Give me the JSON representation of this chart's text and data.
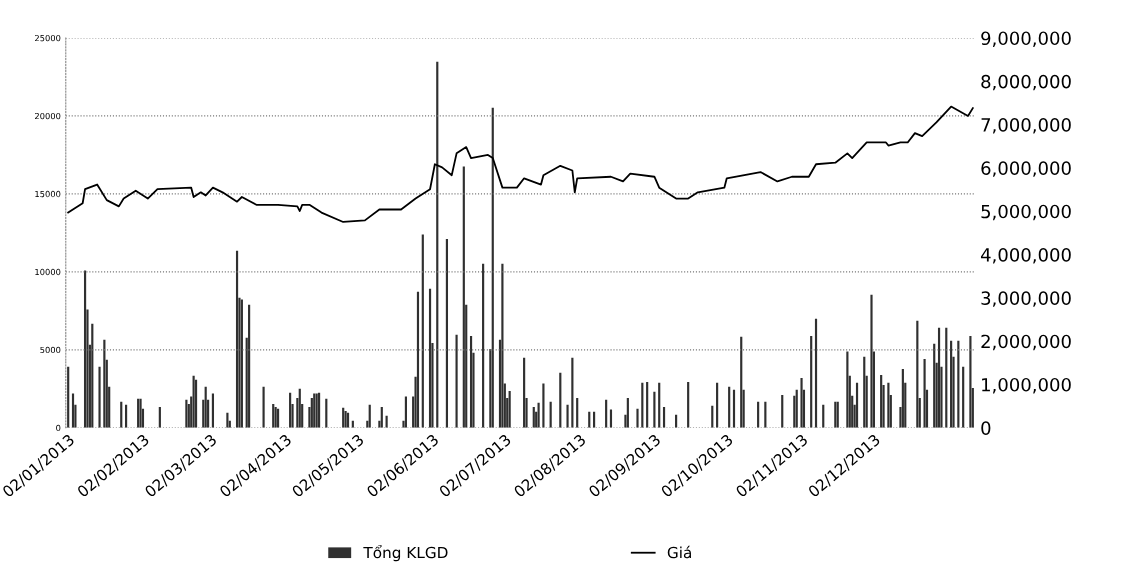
{
  "chart_data": {
    "type": "bar",
    "legend": "bottom",
    "grid": "y",
    "xlim": [
      "2013-01-01",
      "2014-01-13"
    ],
    "xticks": [
      {
        "value": "2013-01-02",
        "label": "02/01/2013"
      },
      {
        "value": "2013-02-02",
        "label": "02/02/2013"
      },
      {
        "value": "2013-03-02",
        "label": "02/03/2013"
      },
      {
        "value": "2013-04-02",
        "label": "02/04/2013"
      },
      {
        "value": "2013-05-02",
        "label": "02/05/2013"
      },
      {
        "value": "2013-06-02",
        "label": "02/06/2013"
      },
      {
        "value": "2013-07-02",
        "label": "02/07/2013"
      },
      {
        "value": "2013-08-02",
        "label": "02/08/2013"
      },
      {
        "value": "2013-09-02",
        "label": "02/09/2013"
      },
      {
        "value": "2013-10-02",
        "label": "02/10/2013"
      },
      {
        "value": "2013-11-02",
        "label": "02/11/2013"
      },
      {
        "value": "2013-12-02",
        "label": "02/12/2013"
      }
    ],
    "ylim": [
      0,
      25000
    ],
    "yticks": [
      0,
      5000,
      10000,
      15000,
      20000,
      25000
    ],
    "y2lim": [
      0,
      9000000
    ],
    "y2ticks": [
      {
        "value": 0,
        "label": "0"
      },
      {
        "value": 1000000,
        "label": "1,000,000"
      },
      {
        "value": 2000000,
        "label": "2,000,000"
      },
      {
        "value": 3000000,
        "label": "3,000,000"
      },
      {
        "value": 4000000,
        "label": "4,000,000"
      },
      {
        "value": 5000000,
        "label": "5,000,000"
      },
      {
        "value": 6000000,
        "label": "6,000,000"
      },
      {
        "value": 7000000,
        "label": "7,000,000"
      },
      {
        "value": 8000000,
        "label": "8,000,000"
      },
      {
        "value": 9000000,
        "label": "9,000,000"
      }
    ],
    "series": [
      {
        "name": "Tổng KLGD",
        "axis": "y2",
        "color": "#303030",
        "x": [
          "2013-01-02",
          "2013-01-04",
          "2013-01-05",
          "2013-01-09",
          "2013-01-10",
          "2013-01-11",
          "2013-01-12",
          "2013-01-15",
          "2013-01-17",
          "2013-01-18",
          "2013-01-19",
          "2013-01-24",
          "2013-01-26",
          "2013-01-31",
          "2013-02-01",
          "2013-02-02",
          "2013-02-09",
          "2013-02-20",
          "2013-02-21",
          "2013-02-22",
          "2013-02-23",
          "2013-02-24",
          "2013-02-27",
          "2013-02-28",
          "2013-03-01",
          "2013-03-03",
          "2013-03-09",
          "2013-03-10",
          "2013-03-13",
          "2013-03-14",
          "2013-03-15",
          "2013-03-17",
          "2013-03-18",
          "2013-03-24",
          "2013-03-28",
          "2013-03-29",
          "2013-03-30",
          "2013-04-04",
          "2013-04-05",
          "2013-04-07",
          "2013-04-08",
          "2013-04-09",
          "2013-04-12",
          "2013-04-13",
          "2013-04-14",
          "2013-04-15",
          "2013-04-16",
          "2013-04-19",
          "2013-04-26",
          "2013-04-27",
          "2013-04-28",
          "2013-04-30",
          "2013-05-06",
          "2013-05-07",
          "2013-05-11",
          "2013-05-12",
          "2013-05-14",
          "2013-05-21",
          "2013-05-22",
          "2013-05-25",
          "2013-05-26",
          "2013-05-27",
          "2013-05-29",
          "2013-06-01",
          "2013-06-02",
          "2013-06-04",
          "2013-06-08",
          "2013-06-12",
          "2013-06-15",
          "2013-06-16",
          "2013-06-18",
          "2013-06-19",
          "2013-06-23",
          "2013-06-26",
          "2013-06-27",
          "2013-06-30",
          "2013-07-01",
          "2013-07-02",
          "2013-07-03",
          "2013-07-04",
          "2013-07-10",
          "2013-07-11",
          "2013-07-14",
          "2013-07-15",
          "2013-07-16",
          "2013-07-18",
          "2013-07-21",
          "2013-07-25",
          "2013-07-28",
          "2013-07-30",
          "2013-08-01",
          "2013-08-06",
          "2013-08-08",
          "2013-08-13",
          "2013-08-15",
          "2013-08-21",
          "2013-08-22",
          "2013-08-26",
          "2013-08-28",
          "2013-08-30",
          "2013-09-02",
          "2013-09-04",
          "2013-09-06",
          "2013-09-11",
          "2013-09-16",
          "2013-09-26",
          "2013-09-28",
          "2013-10-03",
          "2013-10-05",
          "2013-10-08",
          "2013-10-09",
          "2013-10-15",
          "2013-10-18",
          "2013-10-25",
          "2013-10-30",
          "2013-10-31",
          "2013-11-02",
          "2013-11-03",
          "2013-11-06",
          "2013-11-08",
          "2013-11-11",
          "2013-11-16",
          "2013-11-17",
          "2013-11-21",
          "2013-11-22",
          "2013-11-23",
          "2013-11-24",
          "2013-11-25",
          "2013-11-28",
          "2013-11-29",
          "2013-12-01",
          "2013-12-02",
          "2013-12-05",
          "2013-12-06",
          "2013-12-08",
          "2013-12-09",
          "2013-12-13",
          "2013-12-14",
          "2013-12-15",
          "2013-12-20",
          "2013-12-21",
          "2013-12-23",
          "2013-12-24",
          "2013-12-27",
          "2013-12-28",
          "2013-12-29",
          "2013-12-30",
          "2014-01-01",
          "2014-01-03",
          "2014-01-04",
          "2014-01-06",
          "2014-01-08",
          "2014-01-11",
          "2014-01-12"
        ],
        "values": [
          1410000,
          790000,
          530000,
          3630000,
          2730000,
          1920000,
          2400000,
          1410000,
          2030000,
          1570000,
          950000,
          600000,
          530000,
          670000,
          670000,
          440000,
          480000,
          650000,
          550000,
          720000,
          1200000,
          1110000,
          650000,
          950000,
          650000,
          790000,
          350000,
          160000,
          4090000,
          3000000,
          2960000,
          2080000,
          2840000,
          950000,
          550000,
          480000,
          440000,
          810000,
          550000,
          690000,
          900000,
          550000,
          480000,
          690000,
          790000,
          790000,
          810000,
          670000,
          460000,
          390000,
          350000,
          160000,
          160000,
          530000,
          160000,
          480000,
          280000,
          160000,
          720000,
          720000,
          1180000,
          3140000,
          4460000,
          3210000,
          1960000,
          8450000,
          4360000,
          2150000,
          6030000,
          2840000,
          2120000,
          1730000,
          3790000,
          1820000,
          7390000,
          2030000,
          3790000,
          1020000,
          690000,
          850000,
          1620000,
          690000,
          480000,
          370000,
          580000,
          1020000,
          600000,
          1270000,
          530000,
          1620000,
          690000,
          370000,
          370000,
          650000,
          420000,
          300000,
          690000,
          440000,
          1040000,
          1060000,
          830000,
          1040000,
          480000,
          300000,
          1060000,
          510000,
          1040000,
          950000,
          880000,
          2100000,
          880000,
          600000,
          600000,
          760000,
          740000,
          880000,
          1150000,
          880000,
          2120000,
          2520000,
          530000,
          600000,
          600000,
          1760000,
          1200000,
          740000,
          530000,
          1040000,
          1640000,
          1200000,
          3070000,
          1760000,
          1220000,
          990000,
          1040000,
          760000,
          480000,
          1360000,
          1040000,
          2470000,
          690000,
          1590000,
          880000,
          1940000,
          1500000,
          2310000,
          1410000,
          2310000,
          2010000,
          1640000,
          2010000,
          1410000,
          2120000,
          920000
        ]
      },
      {
        "name": "Giá",
        "type": "line",
        "axis": "y",
        "color": "#000000",
        "x": [
          "2013-01-02",
          "2013-01-08",
          "2013-01-09",
          "2013-01-14",
          "2013-01-18",
          "2013-01-23",
          "2013-01-25",
          "2013-01-30",
          "2013-02-04",
          "2013-02-08",
          "2013-02-22",
          "2013-02-23",
          "2013-02-26",
          "2013-02-28",
          "2013-03-03",
          "2013-03-07",
          "2013-03-13",
          "2013-03-15",
          "2013-03-21",
          "2013-03-30",
          "2013-04-07",
          "2013-04-08",
          "2013-04-09",
          "2013-04-12",
          "2013-04-17",
          "2013-04-26",
          "2013-05-05",
          "2013-05-11",
          "2013-05-20",
          "2013-05-26",
          "2013-06-01",
          "2013-06-03",
          "2013-06-06",
          "2013-06-10",
          "2013-06-12",
          "2013-06-16",
          "2013-06-18",
          "2013-06-25",
          "2013-06-27",
          "2013-07-01",
          "2013-07-07",
          "2013-07-10",
          "2013-07-17",
          "2013-07-18",
          "2013-07-25",
          "2013-07-30",
          "2013-07-31",
          "2013-08-01",
          "2013-08-15",
          "2013-08-20",
          "2013-08-23",
          "2013-09-02",
          "2013-09-04",
          "2013-09-11",
          "2013-09-16",
          "2013-09-20",
          "2013-10-01",
          "2013-10-02",
          "2013-10-16",
          "2013-10-23",
          "2013-10-29",
          "2013-11-05",
          "2013-11-08",
          "2013-11-16",
          "2013-11-21",
          "2013-11-23",
          "2013-11-29",
          "2013-12-07",
          "2013-12-08",
          "2013-12-13",
          "2013-12-16",
          "2013-12-19",
          "2013-12-22",
          "2013-12-28",
          "2013-12-31",
          "2014-01-03",
          "2014-01-10",
          "2014-01-12"
        ],
        "values": [
          13800,
          14400,
          15300,
          15600,
          14600,
          14200,
          14700,
          15200,
          14700,
          15300,
          15400,
          14800,
          15100,
          14900,
          15400,
          15100,
          14500,
          14800,
          14300,
          14300,
          14200,
          13900,
          14300,
          14300,
          13800,
          13200,
          13300,
          14000,
          14000,
          14700,
          15300,
          16900,
          16700,
          16200,
          17600,
          18000,
          17300,
          17500,
          17300,
          15400,
          15400,
          16000,
          15600,
          16200,
          16800,
          16500,
          15100,
          16000,
          16100,
          15800,
          16300,
          16100,
          15400,
          14700,
          14700,
          15100,
          15400,
          16000,
          16400,
          15800,
          16100,
          16100,
          16900,
          17000,
          17600,
          17300,
          18300,
          18300,
          18100,
          18300,
          18300,
          18900,
          18700,
          19600,
          20100,
          20600,
          20000,
          20500
        ]
      }
    ]
  }
}
